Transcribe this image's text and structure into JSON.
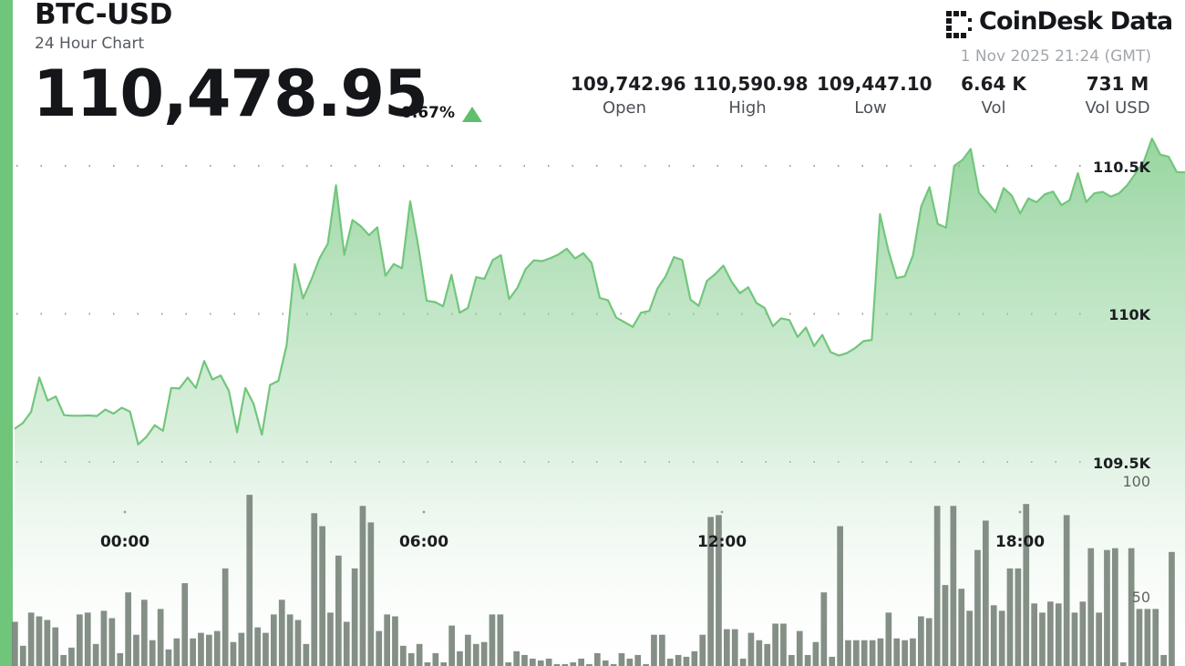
{
  "header": {
    "pair": "BTC-USD",
    "subtitle": "24 Hour Chart",
    "price": "110,478.95",
    "change": "0.67%",
    "direction": "up"
  },
  "brand": {
    "name": "CoinDesk Data",
    "timestamp": "1 Nov 2025 21:24 (GMT)"
  },
  "stats": [
    {
      "value": "109,742.96",
      "label": "Open"
    },
    {
      "value": "110,590.98",
      "label": "High"
    },
    {
      "value": "109,447.10",
      "label": "Low"
    },
    {
      "value": "6.64 K",
      "label": "Vol"
    },
    {
      "value": "731 M",
      "label": "Vol USD"
    }
  ],
  "colors": {
    "accent": "#6fc57a",
    "line": "#72c67c",
    "bars": "#7a857c",
    "up": "#5fbf6c"
  },
  "chart_data": {
    "type": "line",
    "series": [
      {
        "values": [
          109612,
          109631,
          109669,
          109785,
          109707,
          109721,
          109658,
          109656,
          109656,
          109657,
          109655,
          109677,
          109663,
          109683,
          109670,
          109559,
          109585,
          109624,
          109605,
          109750,
          109748,
          109785,
          109750,
          109841,
          109778,
          109792,
          109740,
          109600,
          109750,
          109696,
          109592,
          109760,
          109774,
          109894,
          110168,
          110052,
          110115,
          110188,
          110237,
          110434,
          110200,
          110317,
          110296,
          110266,
          110292,
          110129,
          110168,
          110154,
          110380,
          110225,
          110044,
          110040,
          110026,
          110132,
          110004,
          110020,
          110124,
          110118,
          110182,
          110198,
          110050,
          110088,
          110151,
          110181,
          110178,
          110188,
          110201,
          110220,
          110187,
          110205,
          110172,
          110054,
          110046,
          109987,
          109972,
          109956,
          110004,
          110010,
          110086,
          110127,
          110192,
          110182,
          110048,
          110027,
          110111,
          110134,
          110163,
          110108,
          110070,
          110090,
          110037,
          110020,
          109958,
          109985,
          109979,
          109922,
          109954,
          109891,
          109929,
          109871,
          109859,
          109868,
          109885,
          109908,
          109912,
          110337,
          110215,
          110121,
          110127,
          110198,
          110363,
          110428,
          110304,
          110291,
          110500,
          110520,
          110557,
          110409,
          110377,
          110343,
          110425,
          110399,
          110339,
          110390,
          110377,
          110404,
          110413,
          110367,
          110384,
          110475,
          110378,
          110407,
          110412,
          110396,
          110407,
          110435,
          110474,
          110514,
          110592,
          110538,
          110531,
          110479,
          110478
        ],
        "values_raw": []
      },
      {
        "name": "Vol",
        "values": [
          24,
          11,
          29,
          27,
          25,
          21,
          6,
          10,
          28,
          29,
          12,
          30,
          26,
          7,
          40,
          17,
          36,
          14,
          31,
          9,
          15,
          45,
          15,
          18,
          17,
          19,
          53,
          13,
          18,
          93,
          21,
          18,
          28,
          36,
          28,
          25,
          12,
          83,
          76,
          29,
          60,
          24,
          53,
          87,
          78,
          19,
          28,
          27,
          11,
          7,
          12,
          2,
          7,
          2,
          22,
          8,
          17,
          12,
          13,
          28,
          28,
          2,
          8,
          6,
          4,
          3,
          4,
          1,
          1,
          2,
          4,
          1,
          7,
          3,
          1,
          7,
          4,
          6,
          1,
          17,
          17,
          4,
          6,
          5,
          8,
          17,
          81,
          82,
          20,
          20,
          4,
          18,
          14,
          12,
          23,
          23,
          6,
          19,
          6,
          13,
          40,
          5,
          76,
          14,
          14,
          14,
          14,
          15,
          29,
          15,
          14,
          15,
          27,
          26,
          87,
          44,
          87,
          42,
          30,
          63,
          79,
          33,
          30,
          53,
          53,
          88,
          34,
          29,
          35,
          34,
          82,
          29,
          35,
          64,
          29,
          63,
          64,
          2,
          64,
          31,
          31,
          31,
          6,
          62
        ],
        "values_raw": []
      }
    ],
    "x_ticks": [
      "00:00",
      "06:00",
      "12:00",
      "18:00"
    ],
    "y_ticks": [
      "110.5K",
      "110K",
      "109.5K"
    ],
    "y_tick_values": [
      110500,
      110000,
      109500
    ],
    "vol_ticks": [
      "100",
      "50"
    ],
    "vol_tick_values": [
      100,
      50
    ],
    "ylim": [
      109000,
      110600
    ],
    "vol_lim": [
      0,
      150
    ],
    "grid": true
  }
}
